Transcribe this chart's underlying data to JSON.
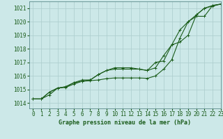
{
  "title": "Graphe pression niveau de la mer (hPa)",
  "bg_color": "#cce8e8",
  "grid_color": "#aacccc",
  "line_color": "#1a5c1a",
  "spine_color": "#5a8a8a",
  "xlim": [
    -0.5,
    23
  ],
  "ylim": [
    1013.6,
    1021.5
  ],
  "yticks": [
    1014,
    1015,
    1016,
    1017,
    1018,
    1019,
    1020,
    1021
  ],
  "xticks": [
    0,
    1,
    2,
    3,
    4,
    5,
    6,
    7,
    8,
    9,
    10,
    11,
    12,
    13,
    14,
    15,
    16,
    17,
    18,
    19,
    20,
    21,
    22,
    23
  ],
  "series1": [
    1014.3,
    1014.3,
    1014.6,
    1015.1,
    1015.2,
    1015.5,
    1015.6,
    1015.7,
    1016.1,
    1016.4,
    1016.5,
    1016.5,
    1016.5,
    1016.5,
    1016.4,
    1017.0,
    1017.1,
    1018.3,
    1019.4,
    1020.0,
    1020.4,
    1020.4,
    1021.2,
    1021.3
  ],
  "series2": [
    1014.3,
    1014.3,
    1014.8,
    1015.1,
    1015.2,
    1015.5,
    1015.7,
    1015.7,
    1016.1,
    1016.4,
    1016.6,
    1016.6,
    1016.6,
    1016.5,
    1016.4,
    1016.6,
    1017.5,
    1018.3,
    1018.5,
    1019.0,
    1020.5,
    1021.0,
    1021.2,
    1021.3
  ],
  "series3": [
    1014.3,
    1014.3,
    1014.8,
    1015.1,
    1015.15,
    1015.4,
    1015.6,
    1015.65,
    1015.7,
    1015.8,
    1015.85,
    1015.85,
    1015.85,
    1015.85,
    1015.82,
    1016.0,
    1016.5,
    1017.2,
    1018.8,
    1020.0,
    1020.5,
    1021.0,
    1021.15,
    1021.3
  ],
  "tick_fontsize": 5.5,
  "title_fontsize": 6.0,
  "lw": 0.8,
  "marker_size": 3.0
}
